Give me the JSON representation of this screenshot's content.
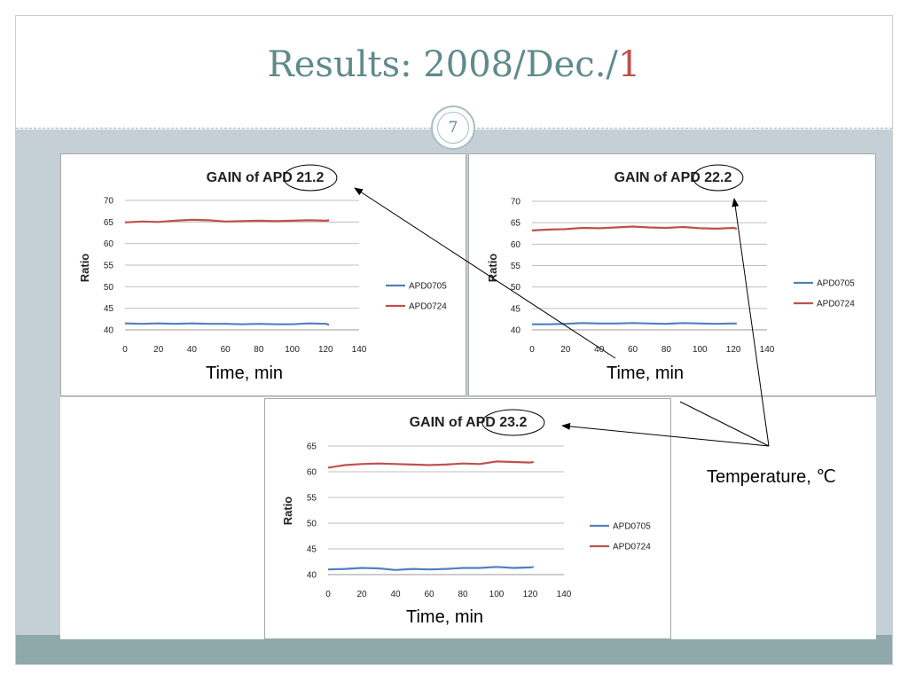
{
  "slide": {
    "title_main": "Results: 2008/Dec./",
    "title_accent": "1",
    "page_number": "7"
  },
  "annotation": {
    "temperature_label": "Temperature, ℃"
  },
  "colors": {
    "series_apd0705": "#4f81bd",
    "series_apd0724": "#c0504d",
    "title_text": "#5f8a8e",
    "band": "#c5d0d6",
    "footer": "#8fa9aa"
  },
  "chart_data": [
    {
      "type": "line",
      "title_prefix": "GAIN of APD ",
      "title_value": "21.2",
      "xlabel": "Time, min",
      "ylabel": "Ratio",
      "xlim": [
        0,
        140
      ],
      "ylim": [
        40,
        70
      ],
      "xticks": [
        0,
        20,
        40,
        60,
        80,
        100,
        120,
        140
      ],
      "yticks": [
        40,
        45,
        50,
        55,
        60,
        65,
        70
      ],
      "grid": true,
      "legend": "right",
      "x": [
        0,
        10,
        20,
        30,
        40,
        50,
        60,
        70,
        80,
        90,
        100,
        110,
        120,
        122
      ],
      "series": [
        {
          "name": "APD0705",
          "values": [
            41.5,
            41.4,
            41.5,
            41.4,
            41.5,
            41.4,
            41.4,
            41.3,
            41.4,
            41.3,
            41.3,
            41.5,
            41.4,
            41.2
          ]
        },
        {
          "name": "APD0724",
          "values": [
            64.9,
            65.1,
            65.0,
            65.3,
            65.5,
            65.4,
            65.1,
            65.2,
            65.3,
            65.2,
            65.3,
            65.4,
            65.3,
            65.4
          ]
        }
      ]
    },
    {
      "type": "line",
      "title_prefix": "GAIN of APD ",
      "title_value": "22.2",
      "xlabel": "Time, min",
      "ylabel": "Ratio",
      "xlim": [
        0,
        140
      ],
      "ylim": [
        40,
        70
      ],
      "xticks": [
        0,
        20,
        40,
        60,
        80,
        100,
        120,
        140
      ],
      "yticks": [
        40,
        45,
        50,
        55,
        60,
        65,
        70
      ],
      "grid": true,
      "legend": "right",
      "x": [
        0,
        10,
        20,
        30,
        40,
        50,
        60,
        70,
        80,
        90,
        100,
        110,
        120,
        122
      ],
      "series": [
        {
          "name": "APD0705",
          "values": [
            41.3,
            41.3,
            41.4,
            41.6,
            41.5,
            41.5,
            41.6,
            41.5,
            41.4,
            41.6,
            41.5,
            41.4,
            41.5,
            41.5
          ]
        },
        {
          "name": "APD0724",
          "values": [
            63.2,
            63.4,
            63.5,
            63.8,
            63.7,
            63.9,
            64.1,
            63.9,
            63.8,
            64.0,
            63.7,
            63.6,
            63.8,
            63.6
          ]
        }
      ]
    },
    {
      "type": "line",
      "title_prefix": "GAIN of APD ",
      "title_value": "23.2",
      "xlabel": "Time, min",
      "ylabel": "Ratio",
      "xlim": [
        0,
        140
      ],
      "ylim": [
        40,
        65
      ],
      "xticks": [
        0,
        20,
        40,
        60,
        80,
        100,
        120,
        140
      ],
      "yticks": [
        40,
        45,
        50,
        55,
        60,
        65
      ],
      "grid": true,
      "legend": "right",
      "x": [
        0,
        10,
        20,
        30,
        40,
        50,
        60,
        70,
        80,
        90,
        100,
        110,
        120,
        122
      ],
      "series": [
        {
          "name": "APD0705",
          "values": [
            41.0,
            41.1,
            41.3,
            41.2,
            40.9,
            41.1,
            41.0,
            41.1,
            41.3,
            41.3,
            41.5,
            41.3,
            41.4,
            41.5
          ]
        },
        {
          "name": "APD0724",
          "values": [
            60.8,
            61.3,
            61.5,
            61.6,
            61.5,
            61.4,
            61.3,
            61.4,
            61.6,
            61.5,
            62.0,
            61.9,
            61.8,
            61.9
          ]
        }
      ]
    }
  ]
}
